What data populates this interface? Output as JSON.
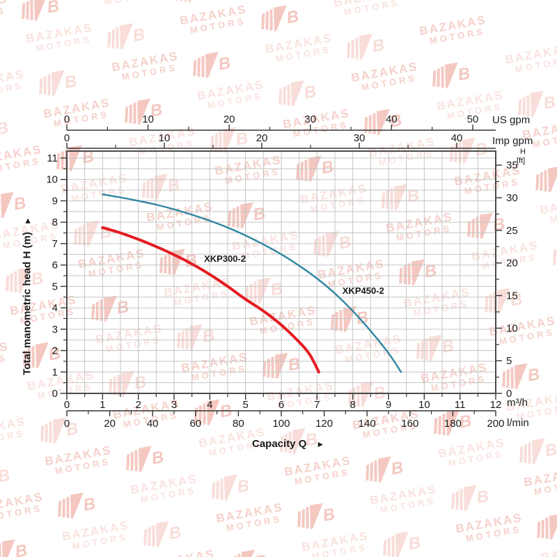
{
  "watermark": {
    "line1": "BAZAKAS",
    "line2": "MOTORS",
    "text_color": "#f5cdc6",
    "logo_color": "#f3c3bb"
  },
  "chart_data": {
    "type": "line",
    "title": "",
    "xlabel": "Capacity Q",
    "xlabel_arrow": "►",
    "xlim": [
      0,
      12
    ],
    "ylim": [
      0,
      11.33
    ],
    "grid": true,
    "grid_step": 0.5,
    "x_axes": [
      {
        "id": "us_gpm",
        "unit": "US gpm",
        "ticks_major": [
          0,
          10,
          20,
          30,
          40,
          50
        ],
        "minor_step": 5,
        "per_m3h": 4.4029
      },
      {
        "id": "imp_gpm",
        "unit": "Imp gpm",
        "ticks_major": [
          0,
          10,
          20,
          30,
          40
        ],
        "minor_step": 5,
        "per_m3h": 3.6662
      },
      {
        "id": "m3h",
        "unit": "m³/h",
        "ticks_major": [
          0,
          1,
          2,
          3,
          4,
          5,
          6,
          7,
          8,
          9,
          10,
          11,
          12
        ],
        "minor_step": 0.5,
        "per_m3h": 1
      },
      {
        "id": "lmin",
        "unit": "l/min",
        "ticks_major": [
          0,
          20,
          40,
          60,
          80,
          100,
          120,
          140,
          160,
          180,
          200
        ],
        "minor_step": 10,
        "per_m3h": 16.667
      }
    ],
    "y_axes": [
      {
        "id": "m",
        "label": "Total manometric head H (m)",
        "arrow": "►",
        "ticks_major": [
          0,
          1,
          2,
          3,
          4,
          5,
          6,
          7,
          8,
          9,
          10,
          11
        ],
        "minor_step": 0.5,
        "per_m": 1
      },
      {
        "id": "ft",
        "unit_line1": "H",
        "unit_line2": "[ft]",
        "ticks_major": [
          0,
          5,
          10,
          15,
          20,
          25,
          30,
          35
        ],
        "minor_step": 2.5,
        "per_m": 3.2808
      }
    ],
    "series": [
      {
        "name": "XKP300-2",
        "color": "#e41b21",
        "width": 4,
        "label_at": [
          3.84,
          6.55
        ],
        "points": [
          [
            1.0,
            7.75
          ],
          [
            1.5,
            7.5
          ],
          [
            2.0,
            7.2
          ],
          [
            2.5,
            6.86
          ],
          [
            3.0,
            6.48
          ],
          [
            3.5,
            6.05
          ],
          [
            4.0,
            5.56
          ],
          [
            4.5,
            5.0
          ],
          [
            5.0,
            4.4
          ],
          [
            5.5,
            3.85
          ],
          [
            6.0,
            3.2
          ],
          [
            6.5,
            2.4
          ],
          [
            6.8,
            1.8
          ],
          [
            7.05,
            1.0
          ]
        ]
      },
      {
        "name": "XKP450-2",
        "color": "#2f85a1",
        "width": 2.4,
        "label_at": [
          7.71,
          5.05
        ],
        "points": [
          [
            1.0,
            9.3
          ],
          [
            1.5,
            9.16
          ],
          [
            2.0,
            9.0
          ],
          [
            2.5,
            8.82
          ],
          [
            3.0,
            8.6
          ],
          [
            3.5,
            8.35
          ],
          [
            4.0,
            8.07
          ],
          [
            4.5,
            7.75
          ],
          [
            5.0,
            7.38
          ],
          [
            5.5,
            6.96
          ],
          [
            6.0,
            6.5
          ],
          [
            6.5,
            5.97
          ],
          [
            7.0,
            5.37
          ],
          [
            7.5,
            4.67
          ],
          [
            8.0,
            3.85
          ],
          [
            8.5,
            2.92
          ],
          [
            9.0,
            1.88
          ],
          [
            9.35,
            1.0
          ]
        ]
      }
    ],
    "colors": {
      "grid": "#c4c4c4",
      "frame": "#4a4a4a",
      "axis_line": "#333333",
      "text": "#1a1a1a"
    }
  }
}
